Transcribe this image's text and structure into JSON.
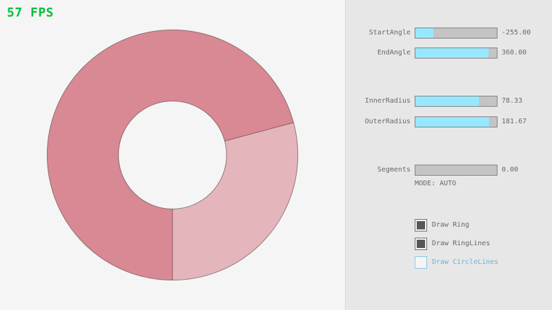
{
  "fps": {
    "label": "57 FPS"
  },
  "controls": {
    "sliders": [
      {
        "label": "StartAngle",
        "value": "-255.00",
        "fill_pct": 21.7
      },
      {
        "label": "EndAngle",
        "value": "360.00",
        "fill_pct": 90.0
      },
      {
        "label": "InnerRadius",
        "value": "78.33",
        "fill_pct": 78.3
      },
      {
        "label": "OuterRadius",
        "value": "181.67",
        "fill_pct": 90.8
      },
      {
        "label": "Segments",
        "value": "0.00",
        "fill_pct": 0
      }
    ],
    "mode_label": "MODE: AUTO",
    "checkboxes": [
      {
        "label": "Draw Ring",
        "checked": true
      },
      {
        "label": "Draw RingLines",
        "checked": true
      },
      {
        "label": "Draw CircleLines",
        "checked": false
      }
    ]
  },
  "colors": {
    "fps_green": "#00c13a",
    "background": "#f5f5f5",
    "panel_bg": "#e7e7e7",
    "panel_divider": "#dadada",
    "ring_dark": "#d98994",
    "ring_light": "#e5b5bc",
    "ring_outline": "rgba(0,0,0,0.4)",
    "slider_fill": "#97e8ff",
    "slider_bg": "#c4c4c4",
    "slider_border": "#838383",
    "text": "#686868",
    "focus_blue": "#6cb4d4"
  }
}
